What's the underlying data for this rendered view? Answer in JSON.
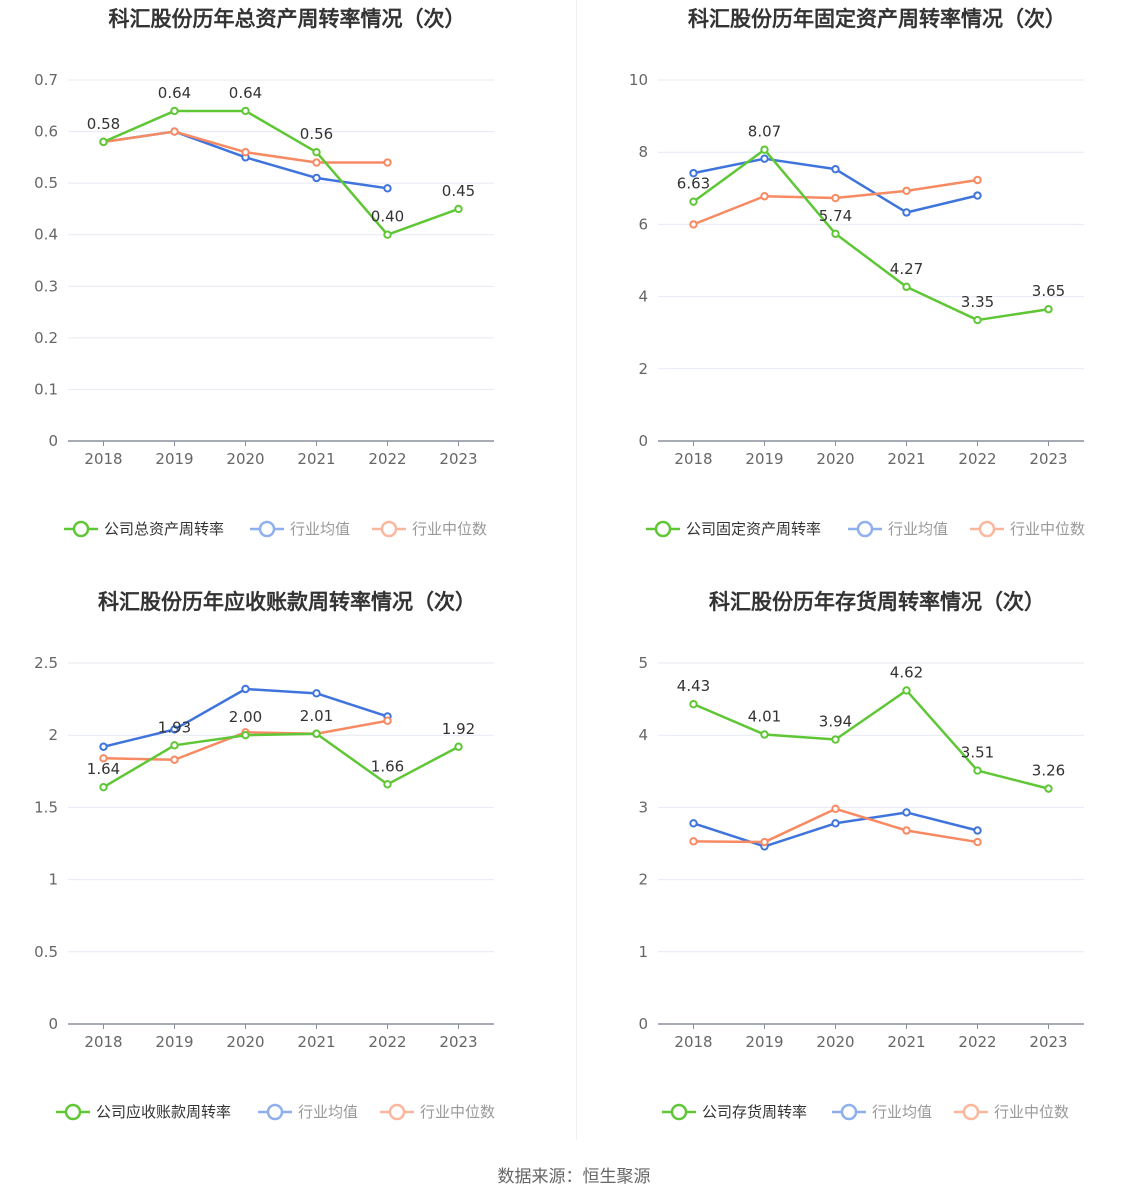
{
  "source": "数据来源：恒生聚源",
  "colors": {
    "company": "#5fc736",
    "avg": "#3f74dc",
    "median": "#f78a63"
  },
  "chart_data": [
    {
      "type": "line",
      "title": "科汇股份历年总资产周转率情况（次）",
      "categories": [
        "2018",
        "2019",
        "2020",
        "2021",
        "2022",
        "2023"
      ],
      "ylim": [
        0,
        0.7
      ],
      "yticks": [
        0,
        0.1,
        0.2,
        0.3,
        0.4,
        0.5,
        0.6,
        0.7
      ],
      "ytick_labels": [
        "0",
        "0.1",
        "0.2",
        "0.3",
        "0.4",
        "0.5",
        "0.6",
        "0.7"
      ],
      "grid": true,
      "legend_position": "bottom",
      "series": [
        {
          "name": "公司总资产周转率",
          "color": "#5fc736",
          "labeled": true,
          "values": [
            0.58,
            0.64,
            0.64,
            0.56,
            0.4,
            0.45
          ],
          "labels": [
            "0.58",
            "0.64",
            "0.64",
            "0.56",
            "0.40",
            "0.45"
          ]
        },
        {
          "name": "行业均值",
          "color": "#3f74dc",
          "labeled": false,
          "values": [
            0.58,
            0.6,
            0.55,
            0.51,
            0.49,
            null
          ]
        },
        {
          "name": "行业中位数",
          "color": "#f78a63",
          "labeled": false,
          "values": [
            0.58,
            0.6,
            0.56,
            0.54,
            0.54,
            null
          ]
        }
      ]
    },
    {
      "type": "line",
      "title": "科汇股份历年固定资产周转率情况（次）",
      "categories": [
        "2018",
        "2019",
        "2020",
        "2021",
        "2022",
        "2023"
      ],
      "ylim": [
        0,
        10
      ],
      "yticks": [
        0,
        2,
        4,
        6,
        8,
        10
      ],
      "ytick_labels": [
        "0",
        "2",
        "4",
        "6",
        "8",
        "10"
      ],
      "grid": true,
      "legend_position": "bottom",
      "series": [
        {
          "name": "公司固定资产周转率",
          "color": "#5fc736",
          "labeled": true,
          "values": [
            6.63,
            8.07,
            5.74,
            4.27,
            3.35,
            3.65
          ],
          "labels": [
            "6.63",
            "8.07",
            "5.74",
            "4.27",
            "3.35",
            "3.65"
          ]
        },
        {
          "name": "行业均值",
          "color": "#3f74dc",
          "labeled": false,
          "values": [
            7.42,
            7.82,
            7.53,
            6.33,
            6.8,
            null
          ]
        },
        {
          "name": "行业中位数",
          "color": "#f78a63",
          "labeled": false,
          "values": [
            6.0,
            6.78,
            6.73,
            6.93,
            7.23,
            null
          ]
        }
      ]
    },
    {
      "type": "line",
      "title": "科汇股份历年应收账款周转率情况（次）",
      "categories": [
        "2018",
        "2019",
        "2020",
        "2021",
        "2022",
        "2023"
      ],
      "ylim": [
        0,
        2.5
      ],
      "yticks": [
        0,
        0.5,
        1,
        1.5,
        2,
        2.5
      ],
      "ytick_labels": [
        "0",
        "0.5",
        "1",
        "1.5",
        "2",
        "2.5"
      ],
      "grid": true,
      "legend_position": "bottom",
      "series": [
        {
          "name": "公司应收账款周转率",
          "color": "#5fc736",
          "labeled": true,
          "values": [
            1.64,
            1.93,
            2.0,
            2.01,
            1.66,
            1.92
          ],
          "labels": [
            "1.64",
            "1.93",
            "2.00",
            "2.01",
            "1.66",
            "1.92"
          ]
        },
        {
          "name": "行业均值",
          "color": "#3f74dc",
          "labeled": false,
          "values": [
            1.92,
            2.04,
            2.32,
            2.29,
            2.13,
            null
          ]
        },
        {
          "name": "行业中位数",
          "color": "#f78a63",
          "labeled": false,
          "values": [
            1.84,
            1.83,
            2.02,
            2.01,
            2.1,
            null
          ]
        }
      ]
    },
    {
      "type": "line",
      "title": "科汇股份历年存货周转率情况（次）",
      "categories": [
        "2018",
        "2019",
        "2020",
        "2021",
        "2022",
        "2023"
      ],
      "ylim": [
        0,
        5
      ],
      "yticks": [
        0,
        1,
        2,
        3,
        4,
        5
      ],
      "ytick_labels": [
        "0",
        "1",
        "2",
        "3",
        "4",
        "5"
      ],
      "grid": true,
      "legend_position": "bottom",
      "series": [
        {
          "name": "公司存货周转率",
          "color": "#5fc736",
          "labeled": true,
          "values": [
            4.43,
            4.01,
            3.94,
            4.62,
            3.51,
            3.26
          ],
          "labels": [
            "4.43",
            "4.01",
            "3.94",
            "4.62",
            "3.51",
            "3.26"
          ]
        },
        {
          "name": "行业均值",
          "color": "#3f74dc",
          "labeled": false,
          "values": [
            2.78,
            2.46,
            2.78,
            2.93,
            2.68,
            null
          ]
        },
        {
          "name": "行业中位数",
          "color": "#f78a63",
          "labeled": false,
          "values": [
            2.53,
            2.52,
            2.98,
            2.68,
            2.52,
            null
          ]
        }
      ]
    }
  ]
}
